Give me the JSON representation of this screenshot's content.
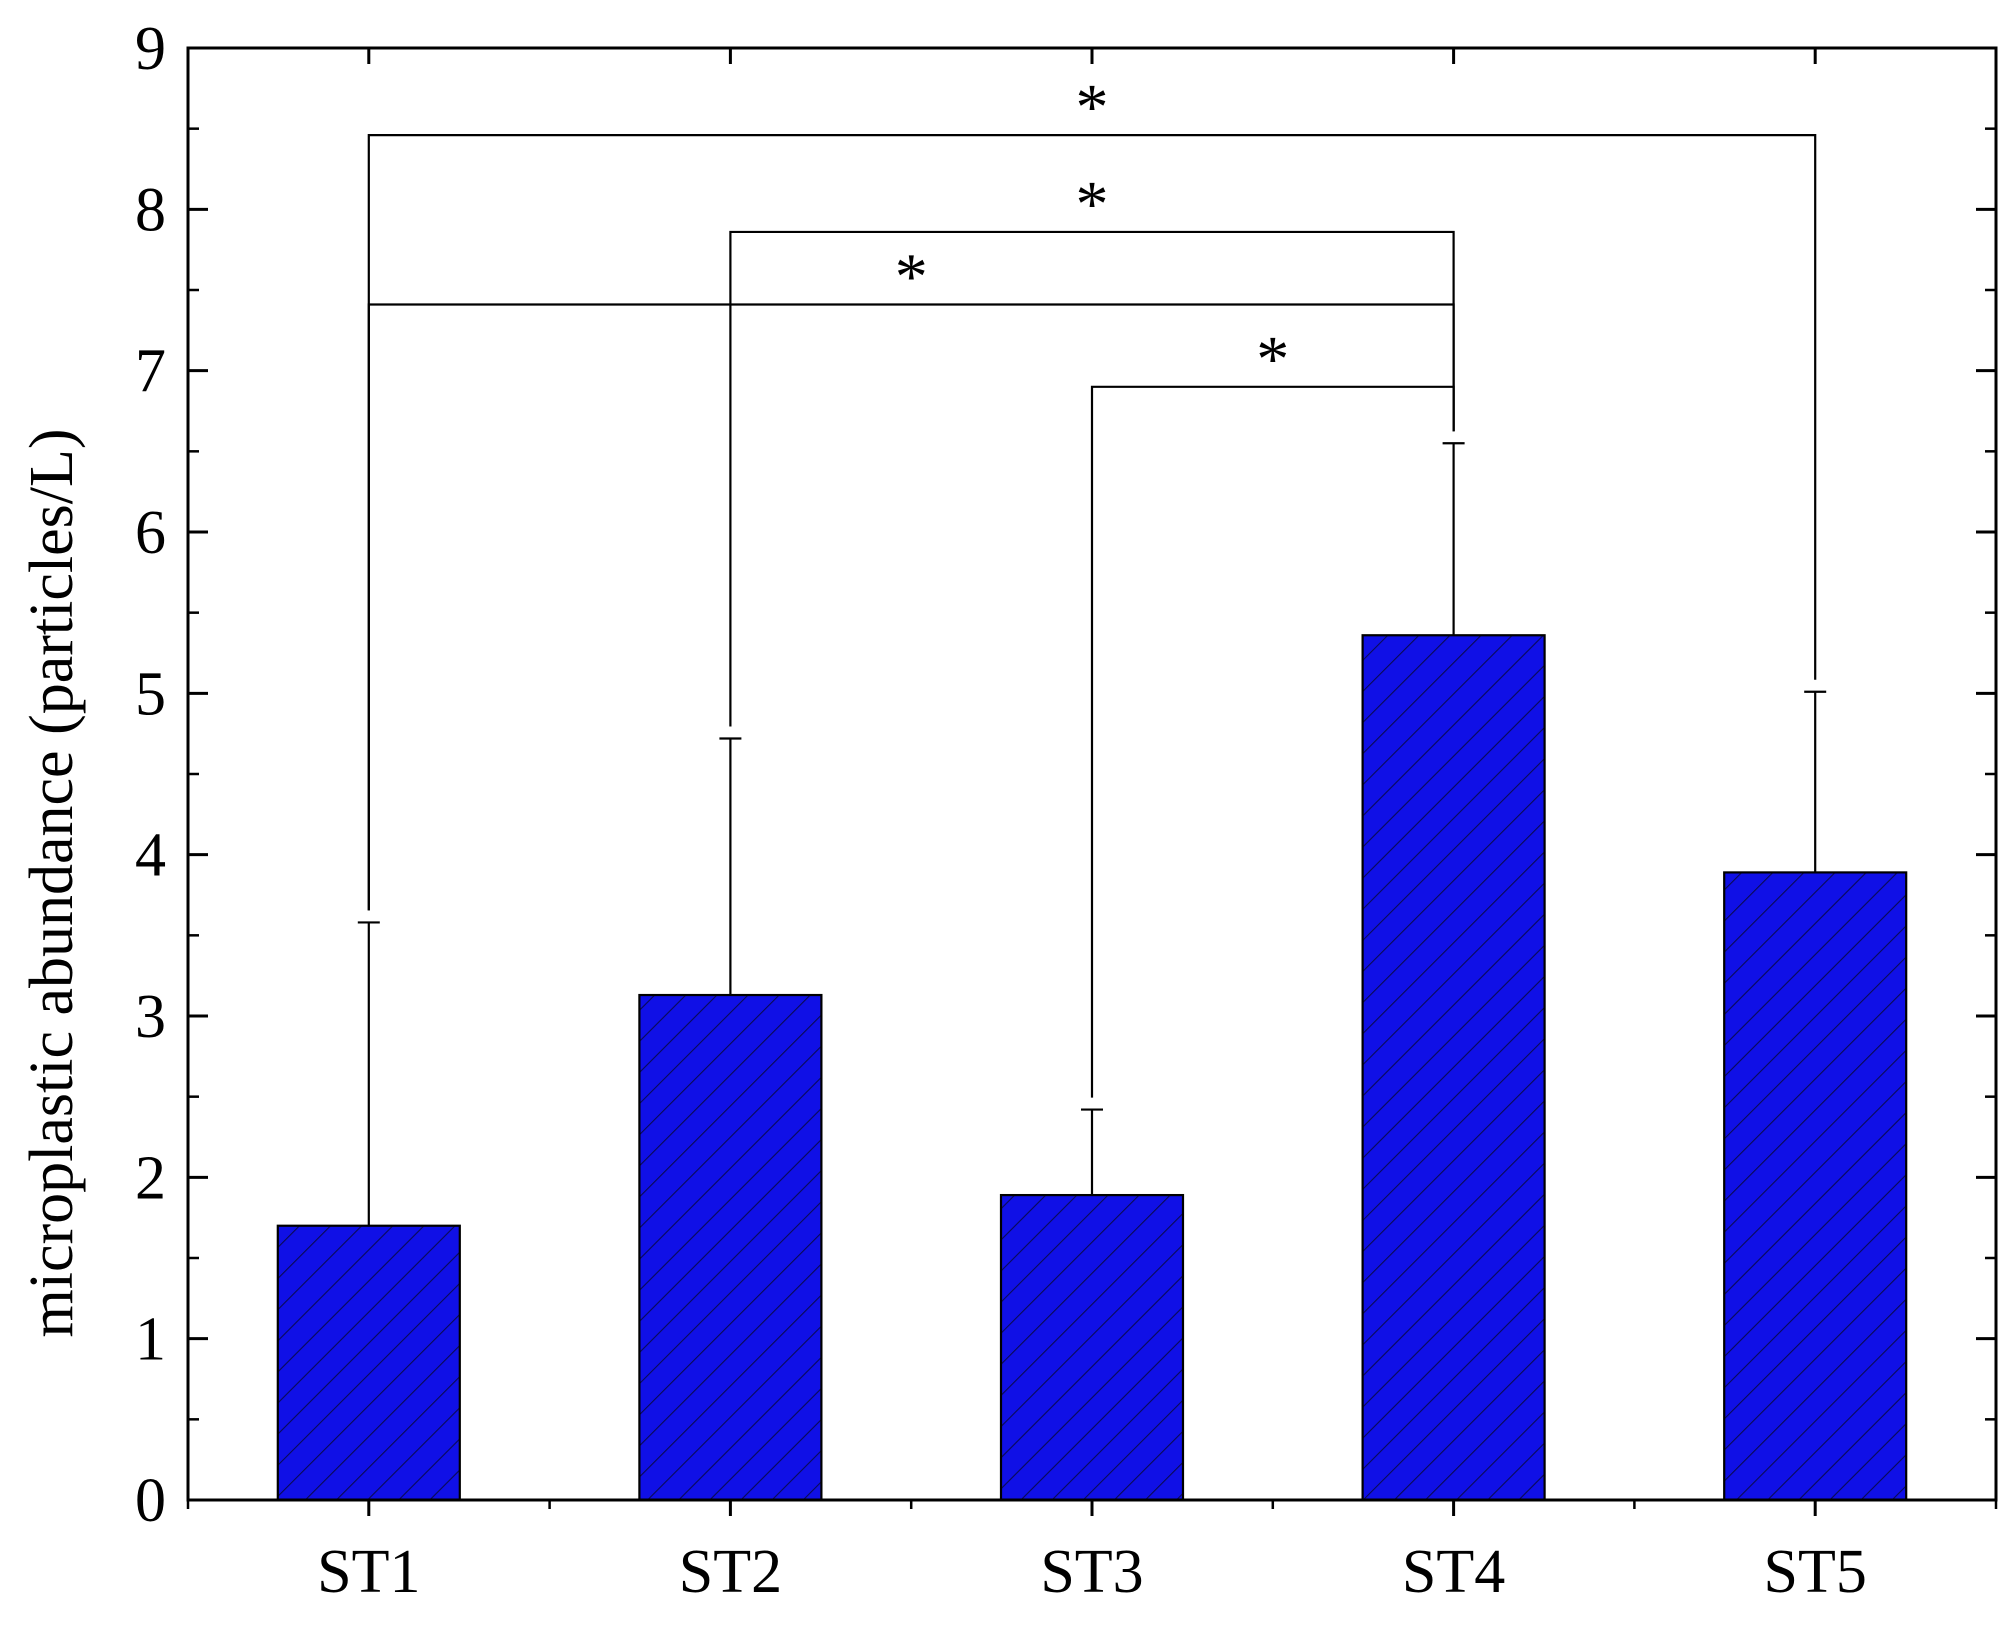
{
  "chart_data": {
    "type": "bar",
    "categories": [
      "ST1",
      "ST2",
      "ST3",
      "ST4",
      "ST5"
    ],
    "values": [
      1.7,
      3.13,
      1.89,
      5.36,
      3.89
    ],
    "error_upper": [
      3.58,
      4.72,
      2.42,
      6.55,
      5.01
    ],
    "title": "",
    "xlabel": "",
    "ylabel": "microplastic abundance (particles/L)",
    "ylim": [
      0,
      9
    ],
    "yticks": [
      0,
      1,
      2,
      3,
      4,
      5,
      6,
      7,
      8,
      9
    ],
    "ytick_labels": [
      "0",
      "1",
      "2",
      "3",
      "4",
      "5",
      "6",
      "7",
      "8",
      "9"
    ],
    "bar_color": "#1010e6",
    "hatch": "diagonal",
    "grid": false,
    "significance": [
      {
        "from": "ST1",
        "to": "ST5",
        "y": 8.46,
        "label": "*"
      },
      {
        "from": "ST2",
        "to": "ST4",
        "y": 7.86,
        "label": "*"
      },
      {
        "from": "ST1",
        "to": "ST4",
        "y": 7.41,
        "label": "*"
      },
      {
        "from": "ST3",
        "to": "ST4",
        "y": 6.9,
        "label": "*"
      }
    ]
  }
}
